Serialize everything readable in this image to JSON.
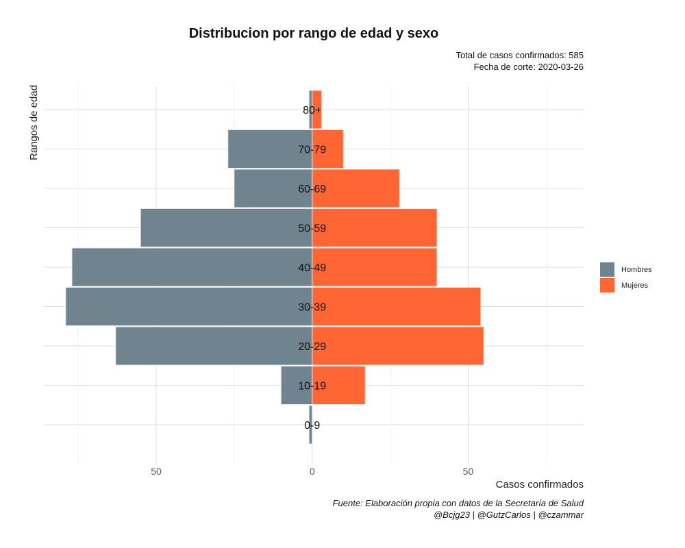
{
  "chart_data": {
    "type": "bar",
    "orientation": "horizontal-population-pyramid",
    "title": "Distribucion por rango de edad y sexo",
    "subtitle_lines": [
      "Total de casos confirmados: 585",
      "Fecha de corte: 2020-03-26"
    ],
    "caption_lines": [
      "Fuente: Elaboración propia con datos de la Secretaría de Salud",
      "@Bcjg23 | @GutzCarlos | @czammar"
    ],
    "xlabel": "Casos confirmados",
    "ylabel": "Rangos de edad",
    "categories": [
      "0-9",
      "10-19",
      "20-29",
      "30-39",
      "40-49",
      "50-59",
      "60-69",
      "70-79",
      "80+"
    ],
    "series": [
      {
        "name": "Hombres",
        "color": "#708490",
        "values": [
          -1,
          -10,
          -63,
          -79,
          -77,
          -55,
          -25,
          -27,
          -1
        ]
      },
      {
        "name": "Mujeres",
        "color": "#ff6633",
        "values": [
          0,
          17,
          55,
          54,
          40,
          40,
          28,
          10,
          3
        ]
      }
    ],
    "xlim": [
      -86,
      87
    ],
    "xticks": [
      -50,
      0,
      50
    ],
    "xtick_labels": [
      "50",
      "0",
      "50"
    ],
    "grid": true,
    "legend_position": "right"
  }
}
